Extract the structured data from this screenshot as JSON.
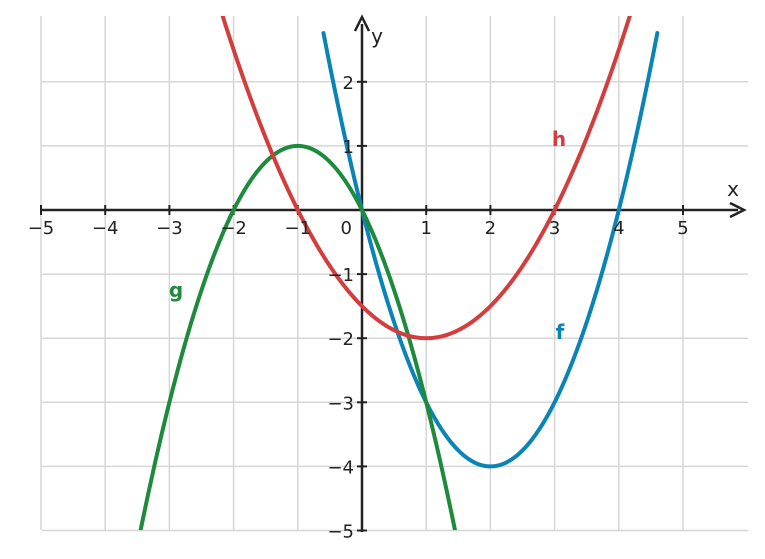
{
  "chart_data": {
    "type": "line",
    "title": "",
    "xlabel": "x",
    "ylabel": "y",
    "xlim": [
      -5,
      5.9
    ],
    "ylim": [
      -5,
      3
    ],
    "grid": true,
    "x_ticks": [
      "−5",
      "−4",
      "−3",
      "−2",
      "−1",
      "1",
      "2",
      "3",
      "4",
      "5"
    ],
    "y_ticks": [
      "2",
      "1",
      "−1",
      "−2",
      "−3",
      "−4",
      "−5"
    ],
    "origin_label": "0",
    "colors": {
      "f": "#0a84b5",
      "g": "#1e8a3c",
      "h": "#d43d3d",
      "grid": "#d6d6d6",
      "axis": "#222222"
    },
    "series": [
      {
        "name": "f",
        "label": "f",
        "x": [
          -0.6,
          0,
          1,
          2,
          3,
          4,
          4.6
        ],
        "y": [
          2.76,
          0,
          -3,
          -4,
          -3,
          0,
          2.76
        ]
      },
      {
        "name": "g",
        "label": "g",
        "x": [
          -3.5,
          -3,
          -2,
          -1,
          0,
          1,
          1.45
        ],
        "y": [
          -5.25,
          -3,
          0,
          1,
          0,
          -3,
          -5.0
        ]
      },
      {
        "name": "h",
        "label": "h",
        "x": [
          -2.2,
          -1,
          0,
          1,
          2,
          3,
          4.2
        ],
        "y": [
          3.12,
          0,
          -1.5,
          -2,
          -1.5,
          0,
          3.12
        ]
      }
    ]
  }
}
